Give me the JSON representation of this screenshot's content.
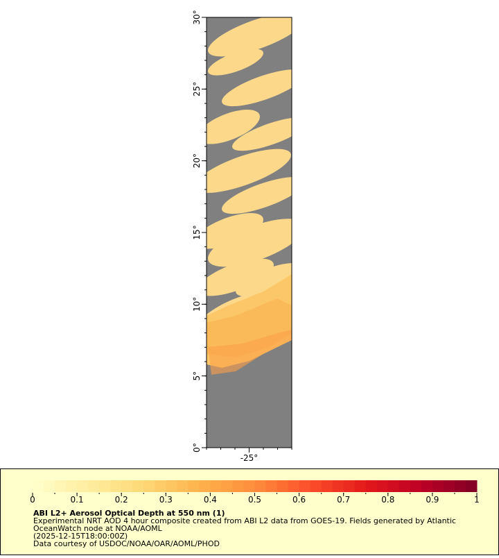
{
  "map": {
    "lat_range": [
      0,
      30
    ],
    "lon_range": [
      -28,
      -22
    ],
    "lat_ticks": [
      {
        "value": 0,
        "label": "0°"
      },
      {
        "value": 5,
        "label": "5°"
      },
      {
        "value": 10,
        "label": "10°"
      },
      {
        "value": 15,
        "label": "15°"
      },
      {
        "value": 20,
        "label": "20°"
      },
      {
        "value": 25,
        "label": "25°"
      },
      {
        "value": 30,
        "label": "30°"
      }
    ],
    "lon_ticks": [
      {
        "value": -25,
        "label": "-25°"
      }
    ]
  },
  "legend": {
    "range": [
      0,
      1
    ],
    "ticks": [
      0,
      0.1,
      0.2,
      0.3,
      0.4,
      0.5,
      0.6,
      0.7,
      0.8,
      0.9,
      1
    ],
    "colors": [
      "#ffffcc",
      "#ffeda0",
      "#fed976",
      "#feb24c",
      "#fd8d3c",
      "#fc4e2a",
      "#e31a1c",
      "#bd0026",
      "#800026"
    ],
    "title": "ABI L2+ Aerosol Optical Depth at 550 nm (1)",
    "description": [
      "Experimental NRT AOD 4 hour composite created from ABI L2 data from GOES-19. Fields generated by Atlantic",
      "OceanWatch node at NOAA/AOML",
      "(2025-12-15T18:00:00Z)",
      "Data courtesy of USDOC/NOAA/OAR/AOML/PHOD"
    ]
  }
}
